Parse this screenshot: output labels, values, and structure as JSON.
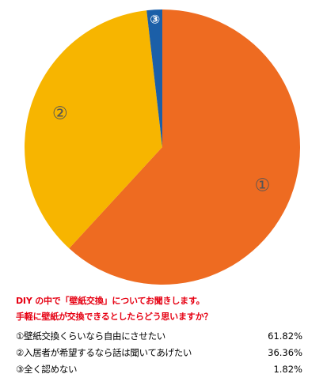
{
  "chart_data": {
    "type": "pie",
    "slices": [
      {
        "marker": "①",
        "label": "壁紙交換くらいなら自由にさせたい",
        "value": 61.82,
        "value_text": "61.82%",
        "color": "#ee6b21",
        "marker_color": "#555555"
      },
      {
        "marker": "②",
        "label": "入居者が希望するなら話は聞いてあげたい",
        "value": 36.36,
        "value_text": "36.36%",
        "color": "#f7b500",
        "marker_color": "#555555"
      },
      {
        "marker": "③",
        "label": "全く認めない",
        "value": 1.82,
        "value_text": "1.82%",
        "color": "#1b5fa8",
        "marker_color": "#ffffff"
      }
    ],
    "question_line1": "DIY の中で「壁紙交換」についてお聞きします。",
    "question_line2": "手軽に壁紙が交換できるとしたらどう思いますか？",
    "question_color": "#e60012"
  }
}
